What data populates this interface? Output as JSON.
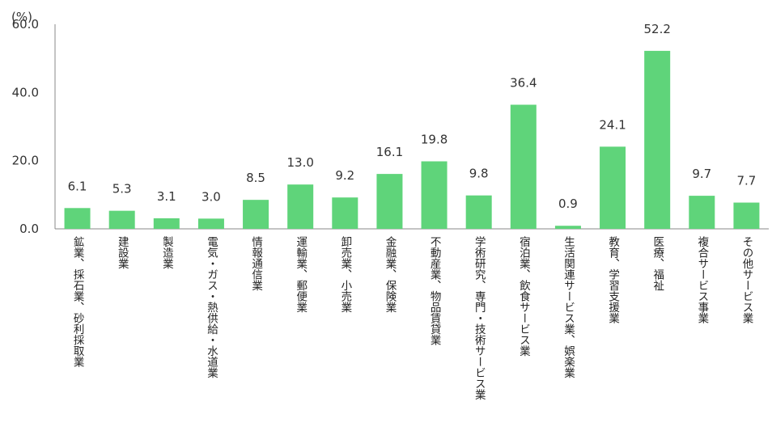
{
  "chart_data": {
    "type": "bar",
    "y_unit_label": "(%)",
    "ylim": [
      0,
      60
    ],
    "y_ticks": [
      "0.0",
      "20.0",
      "40.0",
      "60.0"
    ],
    "grid": false,
    "bar_color": "#5fd47a",
    "categories": [
      "鉱業、採石業、砂利採取業",
      "建設業",
      "製造業",
      "電気・ガス・熱供給・水道業",
      "情報通信業",
      "運輸業、郵便業",
      "卸売業、小売業",
      "金融業、保険業",
      "不動産業、物品賃貸業",
      "学術研究、専門・技術サービス業",
      "宿泊業、飲食サービス業",
      "生活関連サービス業、娯楽業",
      "教育、学習支援業",
      "医療、福祉",
      "複合サービス事業",
      "その他サービス業"
    ],
    "values": [
      6.1,
      5.3,
      3.1,
      3.0,
      8.5,
      13.0,
      9.2,
      16.1,
      19.8,
      9.8,
      36.4,
      0.9,
      24.1,
      52.2,
      9.7,
      7.7
    ],
    "value_labels": [
      "6.1",
      "5.3",
      "3.1",
      "3.0",
      "8.5",
      "13.0",
      "9.2",
      "16.1",
      "19.8",
      "9.8",
      "36.4",
      "0.9",
      "24.1",
      "52.2",
      "9.7",
      "7.7"
    ]
  }
}
